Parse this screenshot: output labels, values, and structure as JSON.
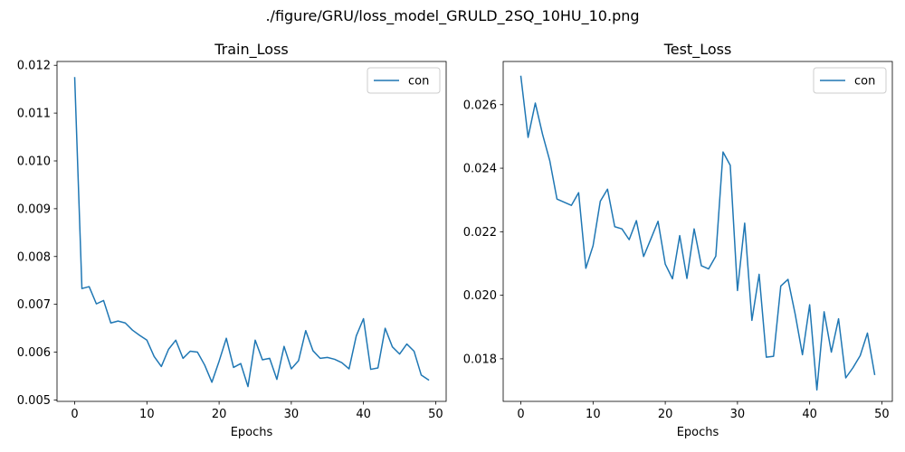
{
  "figure": {
    "suptitle": "./figure/GRU/loss_model_GRULD_2SQ_10HU_10.png"
  },
  "chart_data": [
    {
      "type": "line",
      "title": "Train_Loss",
      "xlabel": "Epochs",
      "ylabel": "",
      "xlim": [
        -2.45,
        51.45
      ],
      "ylim": [
        0.00497,
        0.01208
      ],
      "xticks": [
        0,
        10,
        20,
        30,
        40,
        50
      ],
      "xtick_labels": [
        "0",
        "10",
        "20",
        "30",
        "40",
        "50"
      ],
      "yticks": [
        0.005,
        0.006,
        0.007,
        0.008,
        0.009,
        0.01,
        0.011,
        0.012
      ],
      "ytick_labels": [
        "0.005",
        "0.006",
        "0.007",
        "0.008",
        "0.009",
        "0.010",
        "0.011",
        "0.012"
      ],
      "grid": false,
      "legend_position": "upper right",
      "series": [
        {
          "name": "con",
          "color": "#1f77b4",
          "x": [
            0,
            1,
            2,
            3,
            4,
            5,
            6,
            7,
            8,
            9,
            10,
            11,
            12,
            13,
            14,
            15,
            16,
            17,
            18,
            19,
            20,
            21,
            22,
            23,
            24,
            25,
            26,
            27,
            28,
            29,
            30,
            31,
            32,
            33,
            34,
            35,
            36,
            37,
            38,
            39,
            40,
            41,
            42,
            43,
            44,
            45,
            46,
            47,
            48,
            49
          ],
          "values": [
            0.01174,
            0.00733,
            0.00737,
            0.00701,
            0.00708,
            0.00661,
            0.00665,
            0.00661,
            0.00646,
            0.00635,
            0.00625,
            0.00591,
            0.0057,
            0.00606,
            0.00625,
            0.00587,
            0.00602,
            0.006,
            0.00573,
            0.00537,
            0.00581,
            0.00629,
            0.00568,
            0.00576,
            0.00528,
            0.00625,
            0.00584,
            0.00587,
            0.00543,
            0.00612,
            0.00565,
            0.00582,
            0.00645,
            0.00603,
            0.00587,
            0.00589,
            0.00585,
            0.00578,
            0.00565,
            0.00634,
            0.0067,
            0.00564,
            0.00567,
            0.0065,
            0.00611,
            0.00596,
            0.00617,
            0.00602,
            0.00552,
            0.00542
          ]
        }
      ]
    },
    {
      "type": "line",
      "title": "Test_Loss",
      "xlabel": "Epochs",
      "ylabel": "",
      "xlim": [
        -2.45,
        51.45
      ],
      "ylim": [
        0.01666,
        0.02736
      ],
      "xticks": [
        0,
        10,
        20,
        30,
        40,
        50
      ],
      "xtick_labels": [
        "0",
        "10",
        "20",
        "30",
        "40",
        "50"
      ],
      "yticks": [
        0.018,
        0.02,
        0.022,
        0.024,
        0.026
      ],
      "ytick_labels": [
        "0.018",
        "0.020",
        "0.022",
        "0.024",
        "0.026"
      ],
      "grid": false,
      "legend_position": "upper right",
      "series": [
        {
          "name": "con",
          "color": "#1f77b4",
          "x": [
            0,
            1,
            2,
            3,
            4,
            5,
            6,
            7,
            8,
            9,
            10,
            11,
            12,
            13,
            14,
            15,
            16,
            17,
            18,
            19,
            20,
            21,
            22,
            23,
            24,
            25,
            26,
            27,
            28,
            29,
            30,
            31,
            32,
            33,
            34,
            35,
            36,
            37,
            38,
            39,
            40,
            41,
            42,
            43,
            44,
            45,
            46,
            47,
            48,
            49
          ],
          "values": [
            0.02689,
            0.02497,
            0.02605,
            0.02507,
            0.02424,
            0.02303,
            0.02293,
            0.02283,
            0.02323,
            0.02085,
            0.02156,
            0.02296,
            0.02334,
            0.02216,
            0.02209,
            0.02175,
            0.02235,
            0.02122,
            0.02177,
            0.02233,
            0.02098,
            0.02052,
            0.02188,
            0.02053,
            0.02209,
            0.02093,
            0.02083,
            0.02123,
            0.02451,
            0.02409,
            0.02015,
            0.02227,
            0.01921,
            0.02066,
            0.01805,
            0.01808,
            0.02029,
            0.0205,
            0.0194,
            0.01813,
            0.0197,
            0.01702,
            0.01948,
            0.01821,
            0.01926,
            0.0174,
            0.01772,
            0.0181,
            0.01881,
            0.01751
          ]
        }
      ]
    }
  ]
}
